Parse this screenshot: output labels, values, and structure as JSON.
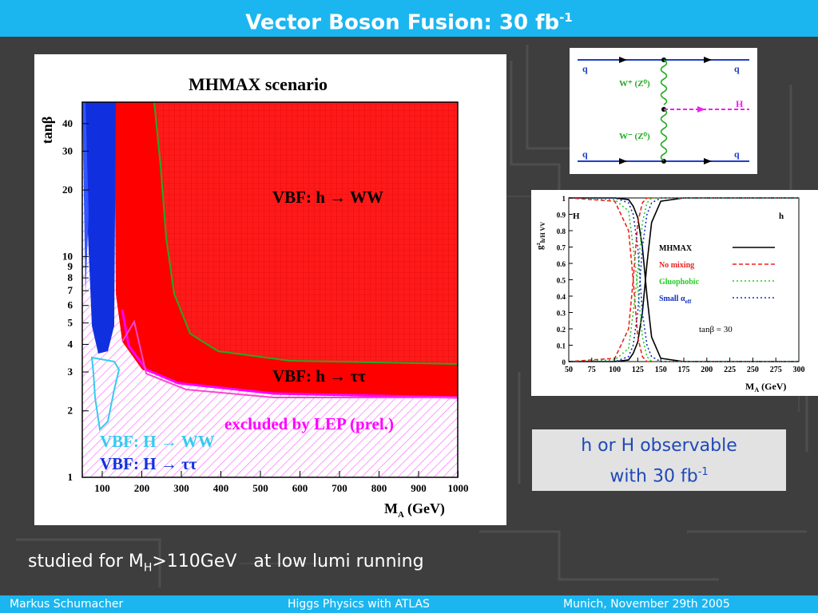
{
  "slide": {
    "title": "Vector Boson Fusion: 30 fb",
    "title_superscript": "-1",
    "caption_line1": "h or H observable",
    "caption_line2_prefix": "with 30 fb",
    "caption_line2_sup": "-1",
    "note_prefix": "studied for M",
    "note_subscript": "H",
    "note_suffix": ">110GeV   at low lumi running"
  },
  "footer": {
    "author": "Markus  Schumacher",
    "talk": "Higgs Physics  with ATLAS",
    "place_date": "Munich, November 29th 2005"
  },
  "colors": {
    "header_bar": "#1bb6f0",
    "caption_text": "#1f49b8",
    "excluded_red": "#ff0000",
    "blue_region": "#1030e0",
    "cyan_region": "#33ccee",
    "magenta_curve": "#ff00ff"
  },
  "exclusion_plot": {
    "title": "MHMAX scenario",
    "ylabel": "tanβ",
    "xlabel": "M",
    "xlabel_sub": "A",
    "xlabel_unit": "(GeV)",
    "xticks": [
      "100",
      "200",
      "300",
      "400",
      "500",
      "600",
      "700",
      "800",
      "900",
      "1000"
    ],
    "yticks": [
      "1",
      "2",
      "3",
      "4",
      "5",
      "6",
      "7",
      "8",
      "9",
      "10",
      "20",
      "30",
      "40"
    ],
    "labels": {
      "vbf_h_ww": "VBF: h → WW",
      "vbf_h_tautau": "VBF: h → ττ",
      "lep": "excluded by LEP (prel.)",
      "vbf_H_ww": "VBF: H → WW",
      "vbf_H_tautau": "VBF: H → ττ"
    }
  },
  "feynman": {
    "q_tl": "q",
    "q_tr": "q",
    "q_bl": "q",
    "q_br": "q",
    "w_top": "W⁺ (Z⁰)",
    "w_bottom": "W⁻ (Z⁰)",
    "higgs": "H"
  },
  "coupling_chart": {
    "ylabel": "g²",
    "ylabel_sub": "h/H VV",
    "xlabel": "M",
    "xlabel_sub": "A",
    "xlabel_unit": "(GeV)",
    "label_H": "H",
    "label_h": "h",
    "tanb_label": "tanβ = 30",
    "legend": [
      "MHMAX",
      "No mixing",
      "Gluophobic",
      "Small α"
    ],
    "legend_sub": "eff",
    "xticks": [
      "50",
      "75",
      "100",
      "125",
      "150",
      "175",
      "200",
      "225",
      "250",
      "275",
      "300"
    ],
    "yticks": [
      "0",
      "0.1",
      "0.2",
      "0.3",
      "0.4",
      "0.5",
      "0.6",
      "0.7",
      "0.8",
      "0.9",
      "1"
    ]
  },
  "chart_data": {
    "type": "line",
    "x": [
      50,
      100,
      115,
      120,
      125,
      130,
      135,
      140,
      150,
      175,
      200,
      250,
      300
    ],
    "xlim": [
      50,
      300
    ],
    "ylim": [
      0,
      1
    ],
    "series": [
      {
        "name": "MHMAX",
        "color": "#000000",
        "style": "solid",
        "values": [
          0,
          0,
          0.01,
          0.05,
          0.12,
          0.3,
          0.6,
          0.85,
          0.98,
          1,
          1,
          1,
          1
        ]
      },
      {
        "name": "No mixing",
        "color": "#ee2222",
        "style": "dashed",
        "values": [
          0,
          0.02,
          0.2,
          0.5,
          0.85,
          0.97,
          1,
          1,
          1,
          1,
          1,
          1,
          1
        ]
      },
      {
        "name": "Gluophobic",
        "color": "#22cc22",
        "style": "dotted",
        "values": [
          0,
          0.01,
          0.08,
          0.3,
          0.55,
          0.85,
          0.97,
          1,
          1,
          1,
          1,
          1,
          1
        ]
      },
      {
        "name": "Small α eff",
        "color": "#1030c0",
        "style": "dotted",
        "values": [
          0,
          0,
          0.03,
          0.1,
          0.3,
          0.7,
          0.9,
          0.97,
          1,
          1,
          1,
          1,
          1
        ]
      }
    ]
  }
}
